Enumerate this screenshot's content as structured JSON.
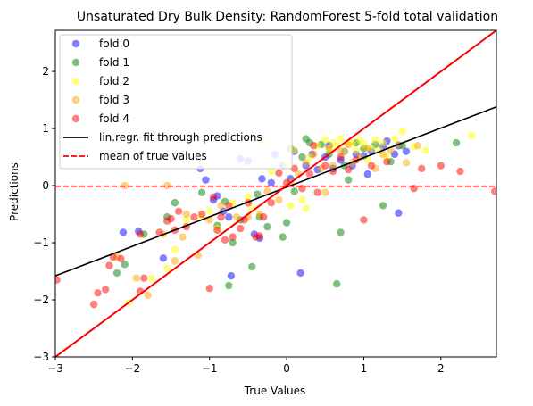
{
  "chart_data": {
    "type": "scatter",
    "title": "Unsaturated Dry Bulk Density: RandomForest 5-fold total validation",
    "xlabel": "True Values",
    "ylabel": "Predictions",
    "xlim": [
      -3.0,
      2.72
    ],
    "ylim": [
      -3.0,
      2.72
    ],
    "xticks": [
      -3,
      -2,
      -1,
      0,
      1,
      2
    ],
    "yticks": [
      -3,
      -2,
      -1,
      0,
      1,
      2
    ],
    "tick_labels": [
      "−3",
      "−2",
      "−1",
      "0",
      "1",
      "2"
    ],
    "grid": false,
    "legend_position": "upper-left",
    "series": [
      {
        "name": "fold 0",
        "color": "#0000ff",
        "points": [
          [
            -2.12,
            -0.82
          ],
          [
            -1.92,
            -0.8
          ],
          [
            -1.6,
            -1.27
          ],
          [
            -1.12,
            0.3
          ],
          [
            -1.05,
            0.1
          ],
          [
            -0.95,
            -0.25
          ],
          [
            -0.9,
            -0.18
          ],
          [
            -0.82,
            -0.45
          ],
          [
            -0.75,
            -0.55
          ],
          [
            -0.72,
            -1.58
          ],
          [
            -0.6,
            0.47
          ],
          [
            -0.5,
            0.43
          ],
          [
            -0.42,
            -0.85
          ],
          [
            -0.35,
            -0.92
          ],
          [
            -0.32,
            0.12
          ],
          [
            -0.2,
            0.05
          ],
          [
            -0.15,
            0.55
          ],
          [
            -0.05,
            0.35
          ],
          [
            0.05,
            0.12
          ],
          [
            0.1,
            0.6
          ],
          [
            0.18,
            -1.53
          ],
          [
            0.25,
            0.35
          ],
          [
            0.33,
            0.55
          ],
          [
            0.4,
            0.28
          ],
          [
            0.5,
            0.5
          ],
          [
            0.55,
            0.7
          ],
          [
            0.6,
            0.3
          ],
          [
            0.7,
            0.45
          ],
          [
            0.75,
            0.6
          ],
          [
            0.85,
            0.35
          ],
          [
            0.9,
            0.55
          ],
          [
            1.0,
            0.52
          ],
          [
            1.05,
            0.2
          ],
          [
            1.1,
            0.6
          ],
          [
            1.25,
            0.68
          ],
          [
            1.3,
            0.78
          ],
          [
            1.4,
            0.55
          ],
          [
            1.45,
            0.7
          ],
          [
            1.45,
            -0.48
          ],
          [
            1.55,
            0.6
          ]
        ]
      },
      {
        "name": "fold 1",
        "color": "#008000",
        "points": [
          [
            -2.2,
            -1.53
          ],
          [
            -2.1,
            -1.38
          ],
          [
            -1.85,
            -0.85
          ],
          [
            -1.55,
            -0.55
          ],
          [
            -1.45,
            -0.3
          ],
          [
            -1.1,
            -0.12
          ],
          [
            -0.9,
            -0.7
          ],
          [
            -0.8,
            -0.28
          ],
          [
            -0.75,
            -1.75
          ],
          [
            -0.7,
            -1.0
          ],
          [
            -0.6,
            -0.6
          ],
          [
            -0.45,
            -1.42
          ],
          [
            -0.38,
            -0.15
          ],
          [
            -0.35,
            -0.55
          ],
          [
            -0.25,
            -0.72
          ],
          [
            -0.05,
            -0.9
          ],
          [
            0.0,
            -0.65
          ],
          [
            0.05,
            0.65
          ],
          [
            0.1,
            -0.1
          ],
          [
            0.2,
            0.5
          ],
          [
            0.25,
            0.82
          ],
          [
            0.3,
            0.75
          ],
          [
            0.45,
            0.72
          ],
          [
            0.55,
            0.55
          ],
          [
            0.65,
            -1.72
          ],
          [
            0.7,
            -0.82
          ],
          [
            0.75,
            0.35
          ],
          [
            0.8,
            0.1
          ],
          [
            0.9,
            0.75
          ],
          [
            1.0,
            0.65
          ],
          [
            1.15,
            0.72
          ],
          [
            1.25,
            -0.35
          ],
          [
            1.35,
            0.42
          ],
          [
            1.5,
            0.7
          ],
          [
            2.2,
            0.75
          ]
        ]
      },
      {
        "name": "fold 2",
        "color": "#ffff00",
        "points": [
          [
            -2.05,
            -2.05
          ],
          [
            -1.75,
            -1.62
          ],
          [
            -1.55,
            -1.45
          ],
          [
            -1.45,
            -1.12
          ],
          [
            -1.3,
            -0.6
          ],
          [
            -1.1,
            -0.55
          ],
          [
            -1.0,
            -0.45
          ],
          [
            -0.9,
            -0.75
          ],
          [
            -0.7,
            -0.3
          ],
          [
            -0.5,
            -0.2
          ],
          [
            -0.45,
            -0.4
          ],
          [
            -0.3,
            0.75
          ],
          [
            -0.2,
            0.25
          ],
          [
            0.0,
            0.35
          ],
          [
            0.05,
            -0.35
          ],
          [
            0.1,
            0.62
          ],
          [
            0.2,
            -0.25
          ],
          [
            0.25,
            -0.4
          ],
          [
            0.3,
            0.5
          ],
          [
            0.4,
            0.7
          ],
          [
            0.5,
            0.8
          ],
          [
            0.55,
            0.65
          ],
          [
            0.6,
            0.75
          ],
          [
            0.65,
            0.7
          ],
          [
            0.7,
            0.82
          ],
          [
            0.75,
            0.6
          ],
          [
            0.8,
            0.72
          ],
          [
            0.85,
            0.75
          ],
          [
            0.9,
            0.62
          ],
          [
            0.95,
            0.8
          ],
          [
            1.0,
            0.72
          ],
          [
            1.05,
            0.45
          ],
          [
            1.1,
            0.65
          ],
          [
            1.15,
            0.8
          ],
          [
            1.2,
            0.62
          ],
          [
            1.25,
            0.75
          ],
          [
            1.3,
            0.5
          ],
          [
            1.4,
            0.82
          ],
          [
            1.5,
            0.95
          ],
          [
            1.65,
            0.68
          ],
          [
            1.8,
            0.62
          ],
          [
            2.4,
            0.88
          ]
        ]
      },
      {
        "name": "fold 3",
        "color": "#ffa500",
        "points": [
          [
            -2.2,
            -1.25
          ],
          [
            -1.95,
            -1.62
          ],
          [
            -1.8,
            -1.92
          ],
          [
            -1.6,
            -0.85
          ],
          [
            -1.45,
            -1.32
          ],
          [
            -1.35,
            -0.9
          ],
          [
            -1.3,
            -0.5
          ],
          [
            -1.15,
            -1.22
          ],
          [
            -1.0,
            -0.6
          ],
          [
            -0.85,
            -0.35
          ],
          [
            -0.65,
            -0.55
          ],
          [
            -0.5,
            -0.55
          ],
          [
            -0.35,
            -0.5
          ],
          [
            -0.25,
            -0.1
          ],
          [
            -0.1,
            -0.25
          ],
          [
            0.05,
            0.05
          ],
          [
            0.15,
            0.2
          ],
          [
            0.25,
            0.4
          ],
          [
            0.35,
            0.55
          ],
          [
            0.45,
            0.3
          ],
          [
            0.5,
            -0.12
          ],
          [
            0.55,
            0.65
          ],
          [
            0.6,
            0.35
          ],
          [
            0.7,
            0.6
          ],
          [
            0.8,
            0.72
          ],
          [
            0.85,
            0.4
          ],
          [
            0.95,
            0.5
          ],
          [
            1.05,
            0.65
          ],
          [
            1.15,
            0.3
          ],
          [
            1.25,
            0.55
          ],
          [
            1.35,
            0.62
          ],
          [
            1.45,
            0.72
          ],
          [
            1.55,
            0.4
          ],
          [
            1.7,
            0.7
          ],
          [
            -2.1,
            0.0
          ],
          [
            -1.55,
            0.0
          ]
        ]
      },
      {
        "name": "fold 4",
        "color": "#ff0000",
        "points": [
          [
            -2.98,
            -1.65
          ],
          [
            -2.5,
            -2.08
          ],
          [
            -2.45,
            -1.88
          ],
          [
            -2.35,
            -1.82
          ],
          [
            -2.3,
            -1.4
          ],
          [
            -2.25,
            -1.25
          ],
          [
            -2.15,
            -1.28
          ],
          [
            -1.9,
            -1.85
          ],
          [
            -1.85,
            -1.62
          ],
          [
            -1.65,
            -0.82
          ],
          [
            -1.55,
            -0.62
          ],
          [
            -1.5,
            -0.58
          ],
          [
            -1.45,
            -0.78
          ],
          [
            -1.3,
            -0.72
          ],
          [
            -1.2,
            -0.55
          ],
          [
            -1.1,
            -0.5
          ],
          [
            -1.0,
            -1.8
          ],
          [
            -0.95,
            -0.2
          ],
          [
            -0.9,
            -0.78
          ],
          [
            -0.85,
            -0.55
          ],
          [
            -0.8,
            -0.95
          ],
          [
            -0.75,
            -0.35
          ],
          [
            -0.7,
            -0.9
          ],
          [
            -0.6,
            -0.75
          ],
          [
            -0.55,
            -0.6
          ],
          [
            -0.5,
            -0.3
          ],
          [
            -0.4,
            -0.9
          ],
          [
            -0.35,
            -0.88
          ],
          [
            -0.3,
            -0.55
          ],
          [
            -0.2,
            -0.3
          ],
          [
            -0.1,
            0.22
          ],
          [
            0.0,
            0.05
          ],
          [
            0.1,
            0.3
          ],
          [
            0.2,
            -0.05
          ],
          [
            0.3,
            0.2
          ],
          [
            0.35,
            0.7
          ],
          [
            0.4,
            -0.12
          ],
          [
            0.5,
            0.35
          ],
          [
            0.6,
            0.25
          ],
          [
            0.7,
            0.5
          ],
          [
            0.8,
            0.28
          ],
          [
            0.9,
            0.45
          ],
          [
            1.0,
            -0.6
          ],
          [
            1.1,
            0.35
          ],
          [
            1.3,
            0.42
          ],
          [
            1.65,
            -0.05
          ],
          [
            1.75,
            0.3
          ],
          [
            2.0,
            0.35
          ],
          [
            2.25,
            0.25
          ],
          [
            2.7,
            -0.1
          ],
          [
            -1.9,
            -0.85
          ],
          [
            -1.4,
            -0.45
          ]
        ]
      }
    ],
    "lines": [
      {
        "name": "lin.regr. fit through predictions",
        "color": "#000000",
        "style": "solid",
        "x": [
          -3.0,
          2.72
        ],
        "y": [
          -1.58,
          1.38
        ]
      },
      {
        "name": "mean of true values",
        "color": "#ff0000",
        "style": "dashed",
        "x": [
          -3.0,
          2.72
        ],
        "y": [
          -0.01,
          -0.01
        ]
      }
    ],
    "identity_line": {
      "color": "#ff0000",
      "x": [
        -3.0,
        2.72
      ],
      "y": [
        -3.0,
        2.72
      ]
    }
  }
}
